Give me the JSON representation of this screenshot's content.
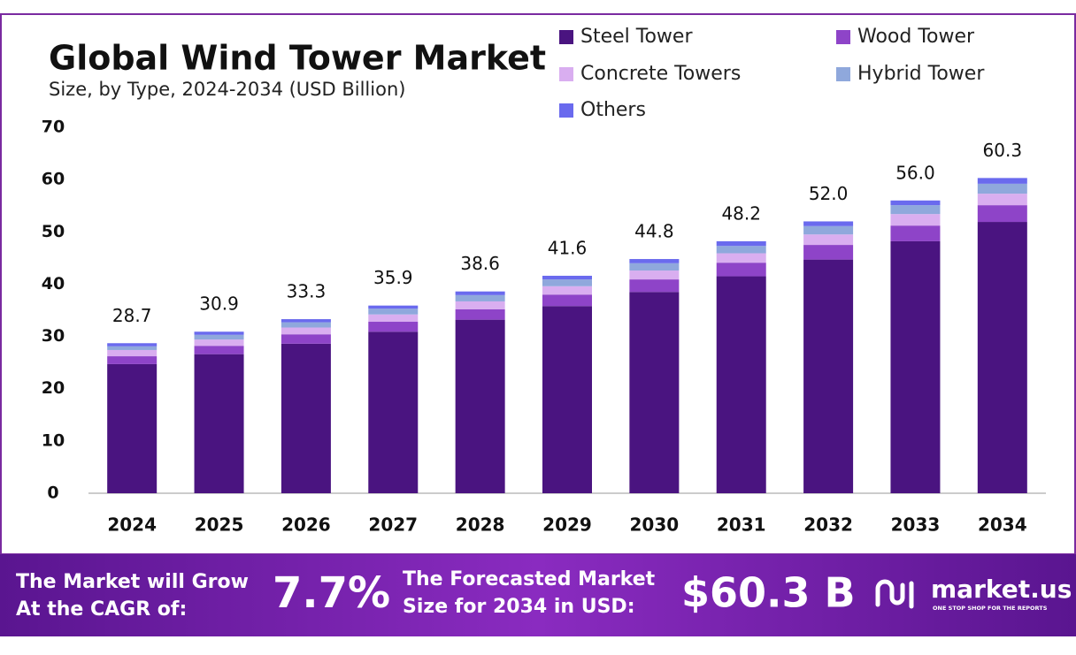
{
  "chart_data": {
    "type": "stacked-bar",
    "title": "Global Wind Tower Market",
    "subtitle": "Size, by Type, 2024-2034 (USD Billion)",
    "categories": [
      "2024",
      "2025",
      "2026",
      "2027",
      "2028",
      "2029",
      "2030",
      "2031",
      "2032",
      "2033",
      "2034"
    ],
    "series": [
      {
        "name": "Steel Tower",
        "color": "#4a1480",
        "values": [
          24.7,
          26.6,
          28.6,
          30.9,
          33.2,
          35.8,
          38.5,
          41.5,
          44.7,
          48.2,
          51.9
        ]
      },
      {
        "name": "Wood Tower",
        "color": "#8e44c8",
        "values": [
          1.5,
          1.6,
          1.8,
          1.9,
          2.0,
          2.2,
          2.4,
          2.6,
          2.8,
          3.0,
          3.2
        ]
      },
      {
        "name": "Concrete Towers",
        "color": "#d9aef0",
        "values": [
          1.2,
          1.2,
          1.3,
          1.4,
          1.5,
          1.6,
          1.7,
          1.8,
          2.0,
          2.2,
          2.2
        ]
      },
      {
        "name": "Hybrid Tower",
        "color": "#8fa8dc",
        "values": [
          0.7,
          0.9,
          1.0,
          1.1,
          1.2,
          1.3,
          1.4,
          1.4,
          1.6,
          1.7,
          1.9
        ]
      },
      {
        "name": "Others",
        "color": "#6a6aee",
        "values": [
          0.6,
          0.6,
          0.6,
          0.6,
          0.7,
          0.7,
          0.8,
          0.9,
          0.9,
          0.9,
          1.1
        ]
      }
    ],
    "totals": {
      "values": [
        28.7,
        30.9,
        33.3,
        35.9,
        38.6,
        41.6,
        44.8,
        48.2,
        52.0,
        56.0,
        60.3
      ],
      "value_labels": [
        "28.7",
        "30.9",
        "33.3",
        "35.9",
        "38.6",
        "41.6",
        "44.8",
        "48.2",
        "52.0",
        "56.0",
        "60.3"
      ]
    },
    "ylim": [
      0,
      70
    ],
    "yticks": [
      0,
      10,
      20,
      30,
      40,
      50,
      60,
      70
    ],
    "grid": false
  },
  "footer": {
    "cagr_text": [
      "The Market will Grow",
      "At the CAGR of:"
    ],
    "cagr": "7.7%",
    "forecast_text": [
      "The Forecasted Market",
      "Size for 2034 in USD:"
    ],
    "forecast": "$60.3 B",
    "brand": "market.us",
    "tagline": "ONE STOP SHOP FOR THE REPORTS"
  }
}
